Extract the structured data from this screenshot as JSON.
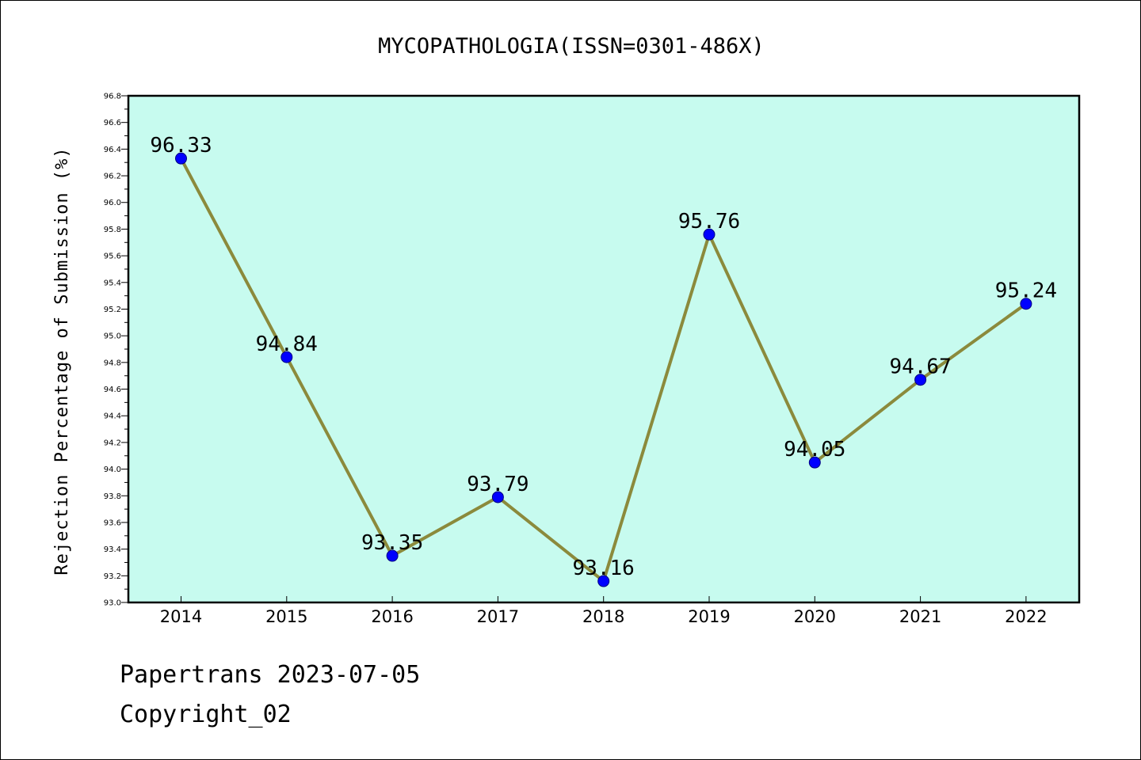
{
  "chart_data": {
    "type": "line",
    "title": "MYCOPATHOLOGIA(ISSN=0301-486X)",
    "xlabel": "",
    "ylabel": "Rejection Percentage of Submission (%)",
    "categories": [
      "2014",
      "2015",
      "2016",
      "2017",
      "2018",
      "2019",
      "2020",
      "2021",
      "2022"
    ],
    "values": [
      96.33,
      94.84,
      93.35,
      93.79,
      93.16,
      95.76,
      94.05,
      94.67,
      95.24
    ],
    "data_labels": [
      "96.33",
      "94.84",
      "93.35",
      "93.79",
      "93.16",
      "95.76",
      "94.05",
      "94.67",
      "95.24"
    ],
    "ylim": [
      93.0,
      96.8
    ],
    "y_ticks": [
      "93.0",
      "93.2",
      "93.4",
      "93.6",
      "93.8",
      "94.0",
      "94.2",
      "94.4",
      "94.6",
      "94.8",
      "95.0",
      "95.2",
      "95.4",
      "95.6",
      "95.8",
      "96.0",
      "96.2",
      "96.4",
      "96.6",
      "96.8"
    ],
    "y_minor_step": 0.1,
    "grid": false,
    "legend": "none",
    "colors": {
      "plot_background": "#c7fbef",
      "line": "#8b8a3c",
      "marker": "#0000ff",
      "marker_edge": "#000080",
      "axes": "#000000"
    }
  },
  "footer": {
    "line1": "Papertrans 2023-07-05",
    "line2": "Copyright_02"
  }
}
